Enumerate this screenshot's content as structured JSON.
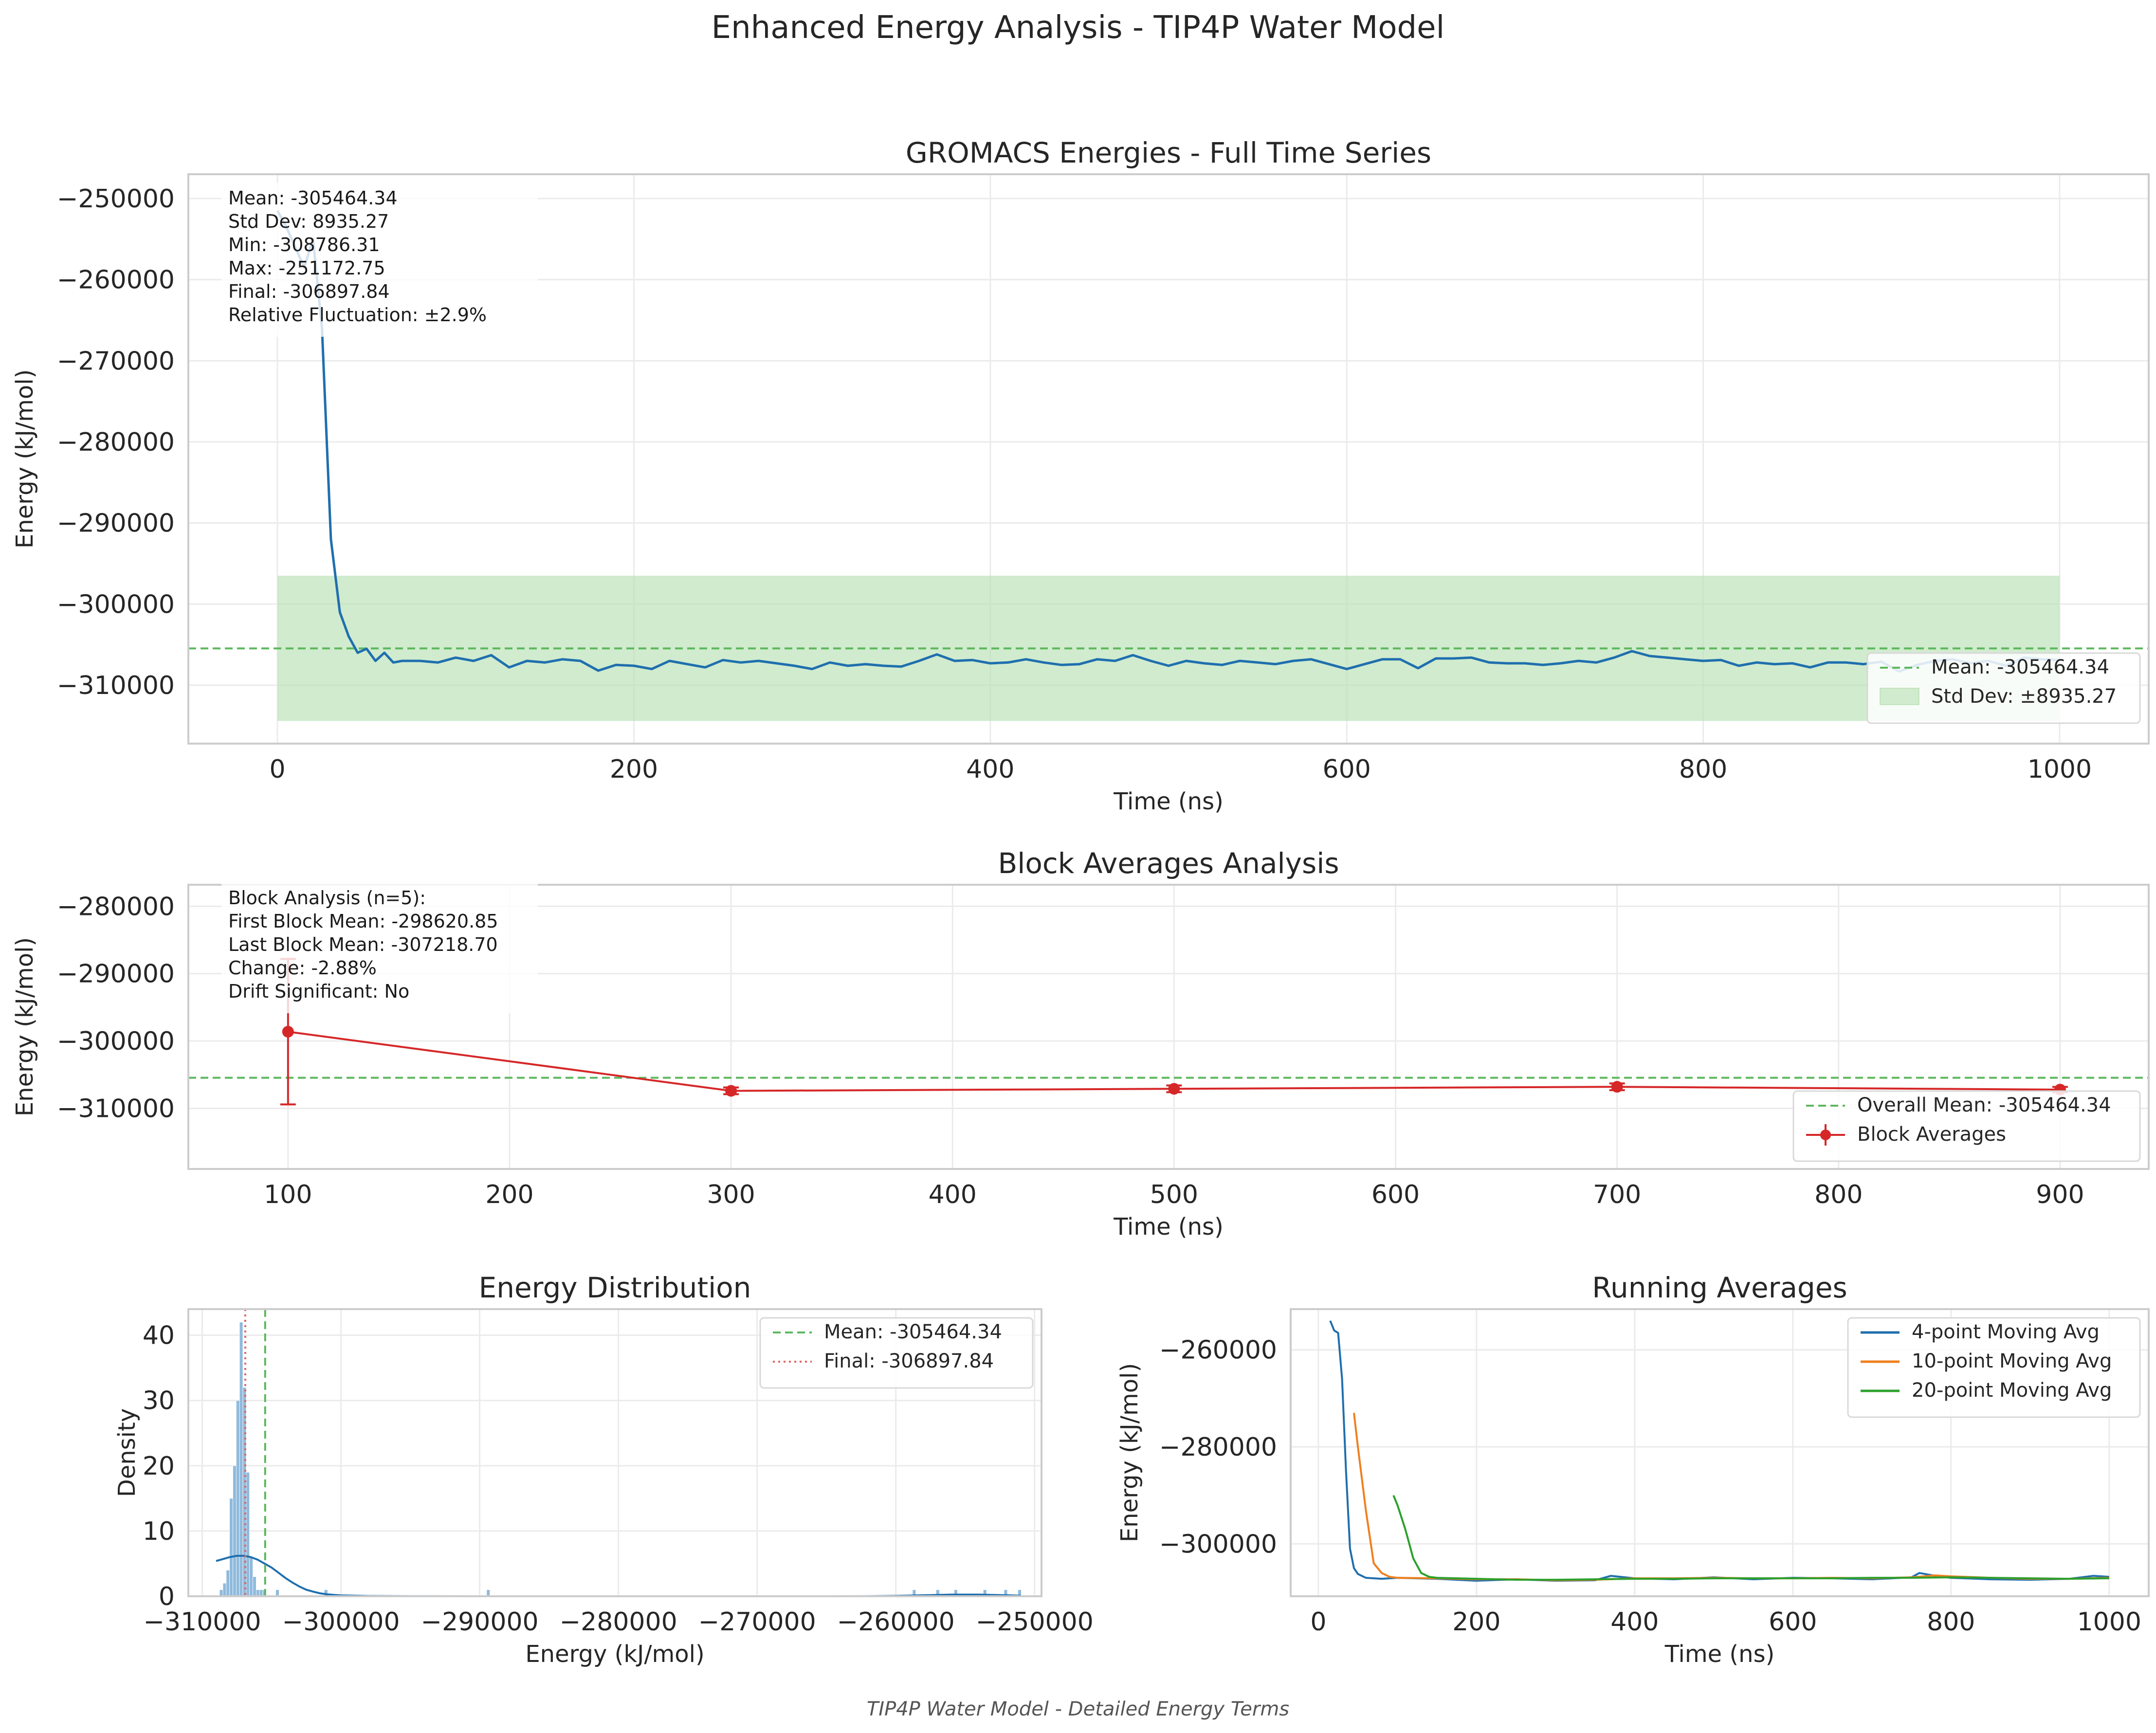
{
  "figure": {
    "title": "Enhanced Energy Analysis - TIP4P Water Model",
    "footer": "TIP4P Water Model - Detailed Energy Terms",
    "colors": {
      "blue": "#1f6fae",
      "orange": "#f07f1e",
      "green": "#2ca02c",
      "red": "#d62728",
      "mean_line": "#5cb85c",
      "band_fill": "#b7e0b3",
      "hist_bar": "#8fbadc",
      "final_line": "#e06666"
    }
  },
  "chart_data": [
    {
      "id": "time_series",
      "type": "line",
      "title": "GROMACS Energies - Full Time Series",
      "xlabel": "Time (ns)",
      "ylabel": "Energy (kJ/mol)",
      "xlim": [
        -50,
        1050
      ],
      "ylim": [
        -317200,
        -247000
      ],
      "xticks": [
        0,
        200,
        400,
        600,
        800,
        1000
      ],
      "xtick_labels": [
        "0",
        "200",
        "400",
        "600",
        "800",
        "1000"
      ],
      "yticks": [
        -250000,
        -260000,
        -270000,
        -280000,
        -290000,
        -300000,
        -310000
      ],
      "ytick_labels": [
        "−250000",
        "−260000",
        "−270000",
        "−280000",
        "−290000",
        "−300000",
        "−310000"
      ],
      "grid": true,
      "mean": -305464.34,
      "std_band": [
        -314400,
        -296500
      ],
      "band_x": [
        0,
        1000
      ],
      "stats_text": [
        "Mean: -305464.34",
        "Std Dev: 8935.27",
        "Min: -308786.31",
        "Max: -251172.75",
        "Final: -306897.84",
        "Relative Fluctuation: ±2.9%"
      ],
      "legend": [
        "Mean: -305464.34",
        "Std Dev: ±8935.27"
      ],
      "legend_loc": "lower right",
      "series": [
        {
          "name": "Energy",
          "x": [
            0,
            5,
            10,
            15,
            20,
            25,
            30,
            35,
            40,
            45,
            50,
            55,
            60,
            65,
            70,
            80,
            90,
            100,
            110,
            120,
            130,
            140,
            150,
            160,
            170,
            180,
            190,
            200,
            210,
            220,
            230,
            240,
            250,
            260,
            270,
            280,
            290,
            300,
            310,
            320,
            330,
            340,
            350,
            360,
            370,
            380,
            390,
            400,
            410,
            420,
            430,
            440,
            450,
            460,
            470,
            480,
            490,
            500,
            510,
            520,
            530,
            540,
            550,
            560,
            570,
            580,
            590,
            600,
            610,
            620,
            630,
            640,
            650,
            660,
            670,
            680,
            690,
            700,
            710,
            720,
            730,
            740,
            750,
            760,
            770,
            780,
            790,
            800,
            810,
            820,
            830,
            840,
            850,
            860,
            870,
            880,
            890,
            900,
            910,
            920,
            930,
            940,
            950,
            960,
            970,
            980,
            990,
            1000
          ],
          "y": [
            -251500,
            -253500,
            -256000,
            -258500,
            -255000,
            -266000,
            -292000,
            -301000,
            -304000,
            -306000,
            -305500,
            -307000,
            -306000,
            -307200,
            -307000,
            -307000,
            -307200,
            -306600,
            -307000,
            -306300,
            -307800,
            -307000,
            -307200,
            -306800,
            -307000,
            -308200,
            -307500,
            -307600,
            -308000,
            -307000,
            -307400,
            -307800,
            -306900,
            -307200,
            -307000,
            -307300,
            -307600,
            -308000,
            -307200,
            -307600,
            -307400,
            -307600,
            -307700,
            -307000,
            -306200,
            -307000,
            -306900,
            -307300,
            -307200,
            -306800,
            -307200,
            -307500,
            -307400,
            -306800,
            -307000,
            -306300,
            -307000,
            -307600,
            -307000,
            -307300,
            -307500,
            -307000,
            -307200,
            -307400,
            -307000,
            -306800,
            -307400,
            -308000,
            -307400,
            -306800,
            -306800,
            -307900,
            -306700,
            -306700,
            -306600,
            -307200,
            -307300,
            -307300,
            -307500,
            -307300,
            -307000,
            -307200,
            -306600,
            -305800,
            -306400,
            -306600,
            -306800,
            -307000,
            -306900,
            -307600,
            -307200,
            -307400,
            -307300,
            -307800,
            -307200,
            -307200,
            -307400,
            -307100,
            -308300,
            -307500,
            -307000,
            -306800,
            -307300,
            -307000,
            -307600,
            -306600,
            -306800,
            -306900
          ]
        }
      ]
    },
    {
      "id": "block_averages",
      "type": "line",
      "title": "Block Averages Analysis",
      "xlabel": "Time (ns)",
      "ylabel": "Energy (kJ/mol)",
      "xlim": [
        55,
        940
      ],
      "ylim": [
        -319000,
        -276800
      ],
      "xticks": [
        100,
        200,
        300,
        400,
        500,
        600,
        700,
        800,
        900
      ],
      "xtick_labels": [
        "100",
        "200",
        "300",
        "400",
        "500",
        "600",
        "700",
        "800",
        "900"
      ],
      "yticks": [
        -280000,
        -290000,
        -300000,
        -310000
      ],
      "ytick_labels": [
        "−280000",
        "−290000",
        "−300000",
        "−310000"
      ],
      "grid": true,
      "overall_mean": -305464.34,
      "stats_text": [
        "Block Analysis (n=5):",
        "First Block Mean: -298620.85",
        "Last Block Mean: -307218.70",
        "Change: -2.88%",
        "Drift Significant: No"
      ],
      "legend": [
        "Overall Mean: -305464.34",
        "Block Averages"
      ],
      "legend_loc": "lower right",
      "series": [
        {
          "name": "Block Averages",
          "x": [
            100,
            300,
            500,
            700,
            900
          ],
          "y": [
            -298620.85,
            -307400,
            -307100,
            -306800,
            -307218.7
          ],
          "err": [
            10800,
            500,
            500,
            500,
            400
          ]
        }
      ]
    },
    {
      "id": "distribution",
      "type": "bar",
      "title": "Energy Distribution",
      "xlabel": "Energy (kJ/mol)",
      "ylabel": "Density",
      "xlim": [
        -311000,
        -249500
      ],
      "ylim": [
        0,
        44
      ],
      "xticks": [
        -310000,
        -300000,
        -290000,
        -280000,
        -270000,
        -260000,
        -250000
      ],
      "xtick_labels": [
        "−310000",
        "−300000",
        "−290000",
        "−280000",
        "−270000",
        "−260000",
        "−250000"
      ],
      "yticks": [
        0,
        10,
        20,
        30,
        40
      ],
      "ytick_labels": [
        "0",
        "10",
        "20",
        "30",
        "40"
      ],
      "grid": true,
      "mean": -305464.34,
      "final": -306897.84,
      "legend": [
        "Mean: -305464.34",
        "Final: -306897.84"
      ],
      "legend_loc": "upper right",
      "bin_width": 240,
      "bins": [
        -308750,
        -308510,
        -308270,
        -308030,
        -307790,
        -307550,
        -307310,
        -307070,
        -306830,
        -306590,
        -306350,
        -306110,
        -305870,
        -305630,
        -304700,
        -301200,
        -289500,
        -258800,
        -257100,
        -255800,
        -253700,
        -252200,
        -251200
      ],
      "counts": [
        1,
        2,
        4,
        15,
        20,
        30,
        42,
        32,
        19,
        6,
        3,
        1,
        1,
        1,
        1,
        1,
        1,
        1,
        1,
        1,
        1,
        1,
        1
      ],
      "kde_x": [
        -309000,
        -308500,
        -308000,
        -307500,
        -307000,
        -306500,
        -306000,
        -305500,
        -305000,
        -304500,
        -304000,
        -303500,
        -303000,
        -302500,
        -302000,
        -301500,
        -301000,
        -300500,
        -300000,
        -298000,
        -295000,
        -290000,
        -280000,
        -270000,
        -265000,
        -262000,
        -260000,
        -258000,
        -256000,
        -254000,
        -252000,
        -251000
      ],
      "kde_y": [
        5.4,
        5.7,
        6.0,
        6.2,
        6.2,
        6.0,
        5.6,
        5.0,
        4.4,
        3.6,
        2.8,
        2.1,
        1.5,
        1.0,
        0.7,
        0.45,
        0.3,
        0.2,
        0.13,
        0.04,
        0.01,
        0.0,
        0.0,
        0.0,
        0.0,
        0.01,
        0.05,
        0.15,
        0.25,
        0.25,
        0.15,
        0.08
      ]
    },
    {
      "id": "running_averages",
      "type": "line",
      "title": "Running Averages",
      "xlabel": "Time (ns)",
      "ylabel": "Energy (kJ/mol)",
      "xlim": [
        -35,
        1050
      ],
      "ylim": [
        -310800,
        -251600
      ],
      "xticks": [
        0,
        200,
        400,
        600,
        800,
        1000
      ],
      "xtick_labels": [
        "0",
        "200",
        "400",
        "600",
        "800",
        "1000"
      ],
      "yticks": [
        -260000,
        -280000,
        -300000
      ],
      "ytick_labels": [
        "−260000",
        "−280000",
        "−300000"
      ],
      "grid": true,
      "legend": [
        "4-point Moving Avg",
        "10-point Moving Avg",
        "20-point Moving Avg"
      ],
      "legend_loc": "upper right",
      "series": [
        {
          "name": "4-point Moving Avg",
          "x": [
            15,
            20,
            25,
            30,
            35,
            40,
            45,
            50,
            60,
            80,
            100,
            150,
            200,
            250,
            300,
            350,
            370,
            400,
            450,
            500,
            550,
            600,
            650,
            700,
            750,
            760,
            780,
            800,
            850,
            900,
            950,
            980,
            1000
          ],
          "y": [
            -254000,
            -256000,
            -256500,
            -266000,
            -285000,
            -301000,
            -305000,
            -306200,
            -307000,
            -307200,
            -307000,
            -307200,
            -307600,
            -307300,
            -307600,
            -307500,
            -306600,
            -307100,
            -307300,
            -306900,
            -307300,
            -307000,
            -307100,
            -307300,
            -306900,
            -306000,
            -306600,
            -307000,
            -307300,
            -307400,
            -307200,
            -306600,
            -306800
          ]
        },
        {
          "name": "10-point Moving Avg",
          "x": [
            45,
            50,
            60,
            70,
            80,
            90,
            100,
            150,
            200,
            250,
            300,
            350,
            400,
            450,
            500,
            550,
            600,
            650,
            700,
            750,
            780,
            800,
            850,
            900,
            950,
            1000
          ],
          "y": [
            -273000,
            -280000,
            -293000,
            -304000,
            -306000,
            -306800,
            -307000,
            -307100,
            -307300,
            -307300,
            -307500,
            -307400,
            -307100,
            -307100,
            -307000,
            -307100,
            -307100,
            -307000,
            -307100,
            -306900,
            -306500,
            -306700,
            -307000,
            -307200,
            -307200,
            -307000
          ]
        },
        {
          "name": "20-point Moving Avg",
          "x": [
            95,
            100,
            110,
            120,
            130,
            140,
            150,
            200,
            250,
            300,
            350,
            400,
            450,
            500,
            550,
            600,
            650,
            700,
            750,
            800,
            850,
            900,
            950,
            1000
          ],
          "y": [
            -290000,
            -292000,
            -297000,
            -303000,
            -306000,
            -306800,
            -307000,
            -307200,
            -307400,
            -307400,
            -307300,
            -307200,
            -307200,
            -307100,
            -307100,
            -307100,
            -307100,
            -307000,
            -307000,
            -306900,
            -307000,
            -307100,
            -307200,
            -307100
          ]
        }
      ]
    }
  ]
}
